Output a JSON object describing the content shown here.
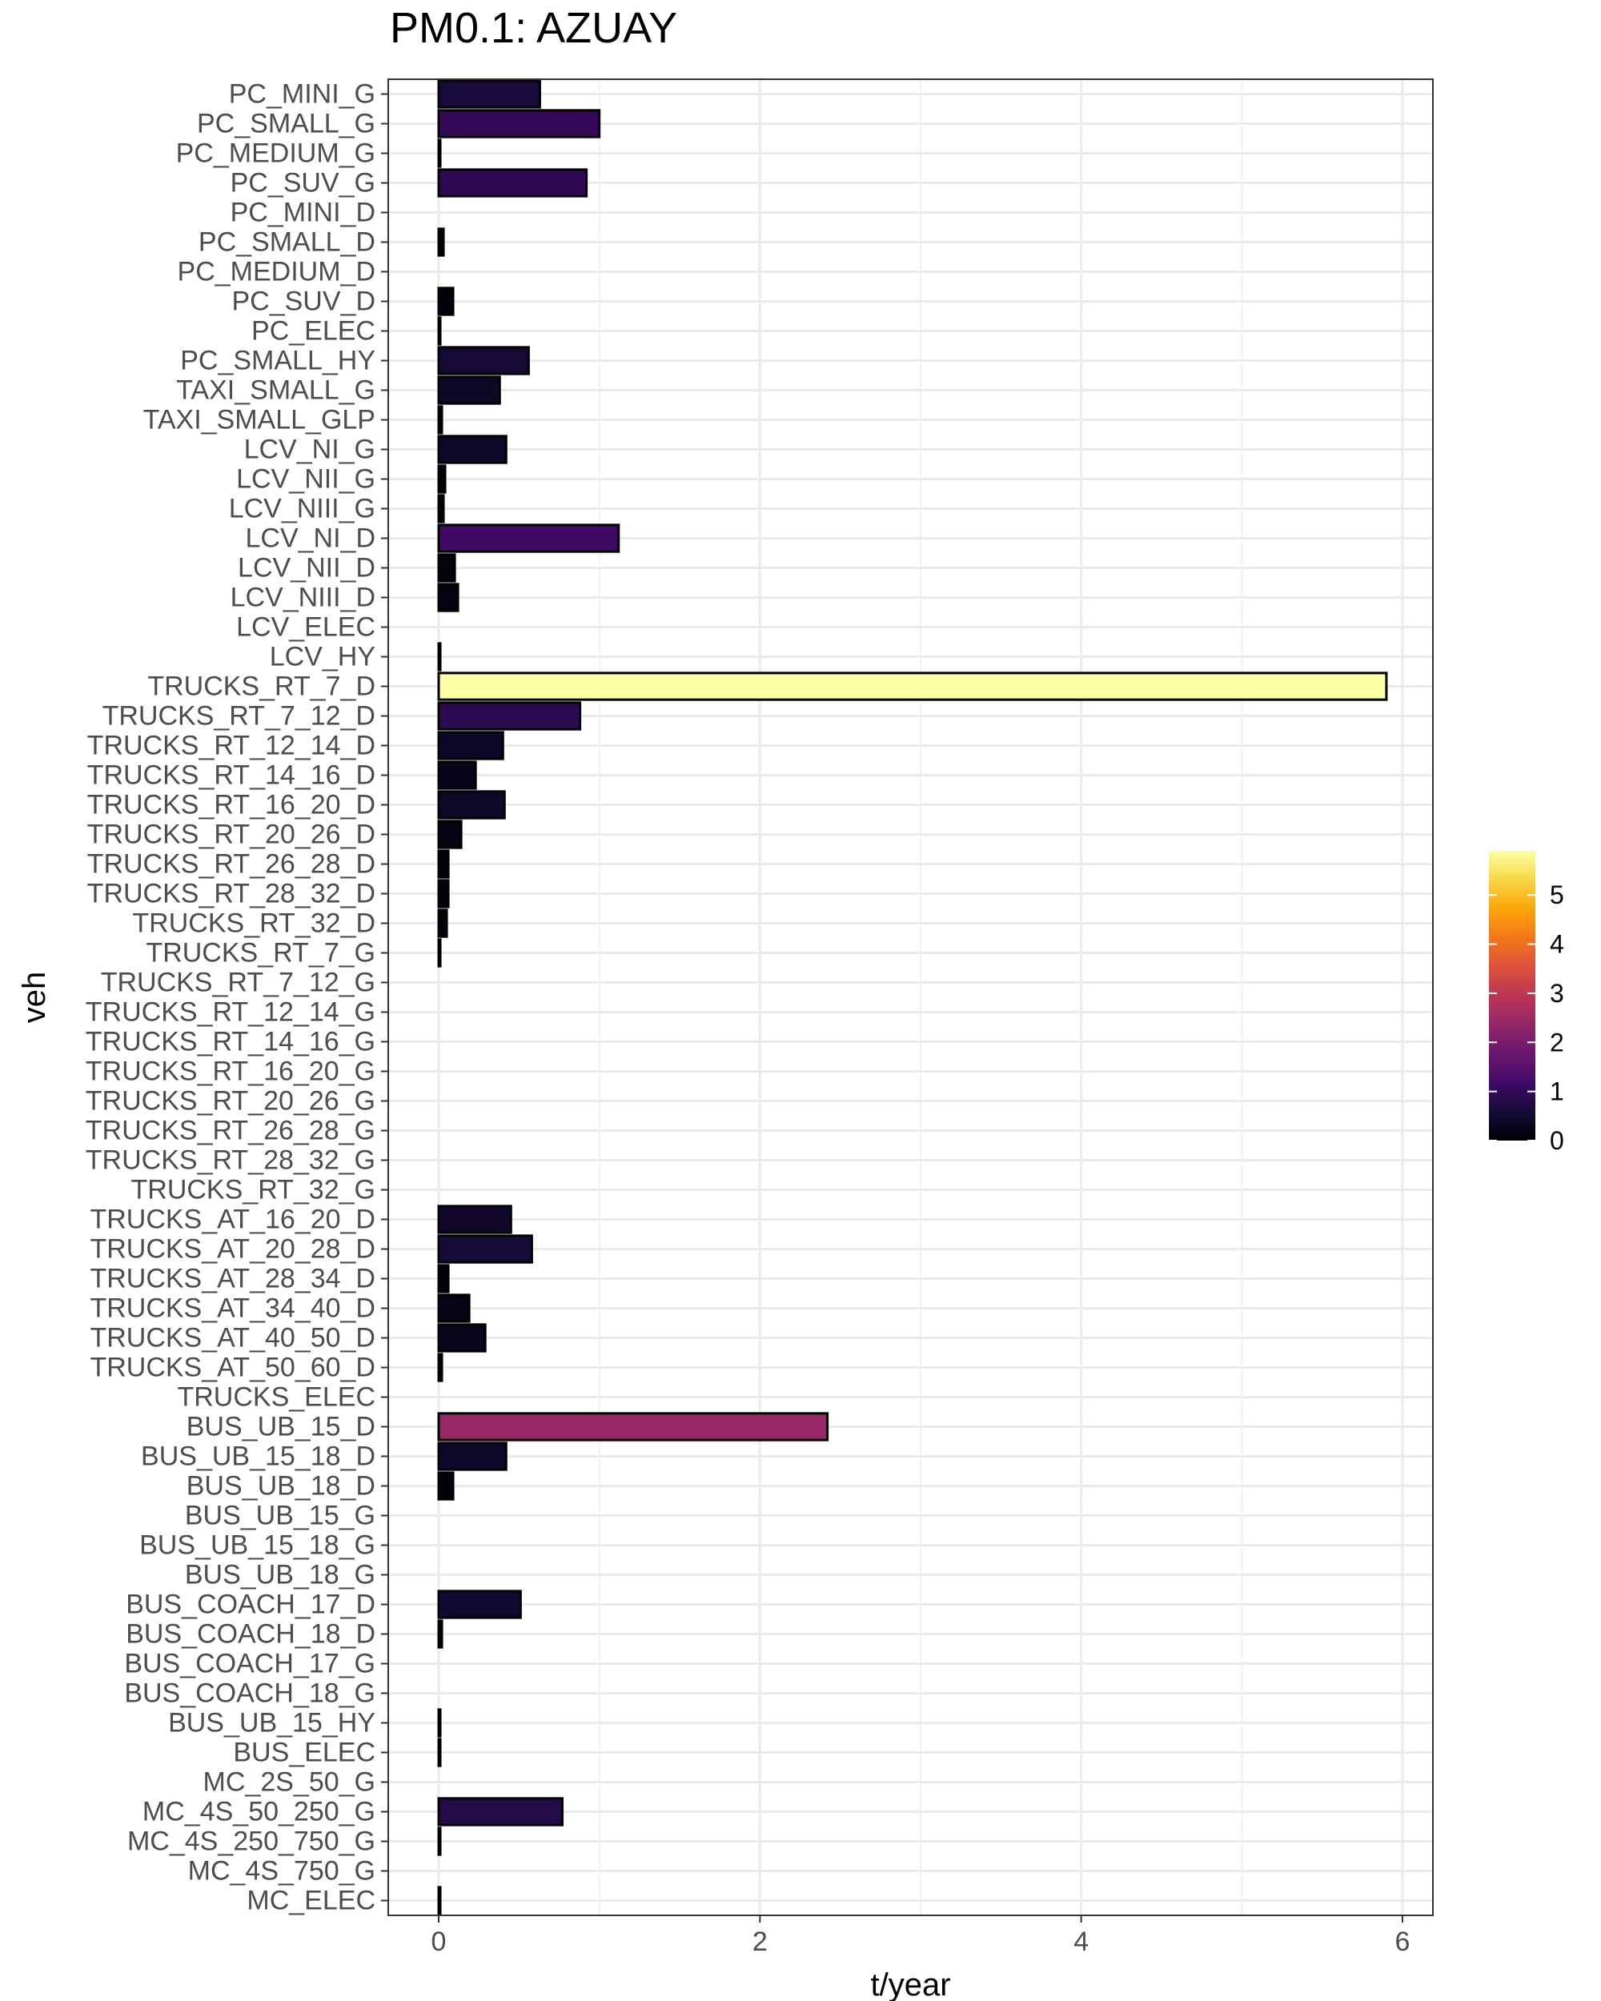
{
  "chart_data": {
    "type": "bar",
    "orientation": "horizontal",
    "title": "PM0.1: AZUAY",
    "xlabel": "t/year",
    "ylabel": "veh",
    "xlim": [
      -0.3,
      6.2
    ],
    "xticks": [
      0,
      2,
      4,
      6
    ],
    "grid": true,
    "colorscale": "inferno",
    "legend": {
      "position": "right",
      "min": 0,
      "max": 5.9,
      "ticks": [
        0,
        1,
        2,
        3,
        4,
        5
      ]
    },
    "categories": [
      "PC_MINI_G",
      "PC_SMALL_G",
      "PC_MEDIUM_G",
      "PC_SUV_G",
      "PC_MINI_D",
      "PC_SMALL_D",
      "PC_MEDIUM_D",
      "PC_SUV_D",
      "PC_ELEC",
      "PC_SMALL_HY",
      "TAXI_SMALL_G",
      "TAXI_SMALL_GLP",
      "LCV_NI_G",
      "LCV_NII_G",
      "LCV_NIII_G",
      "LCV_NI_D",
      "LCV_NII_D",
      "LCV_NIII_D",
      "LCV_ELEC",
      "LCV_HY",
      "TRUCKS_RT_7_D",
      "TRUCKS_RT_7_12_D",
      "TRUCKS_RT_12_14_D",
      "TRUCKS_RT_14_16_D",
      "TRUCKS_RT_16_20_D",
      "TRUCKS_RT_20_26_D",
      "TRUCKS_RT_26_28_D",
      "TRUCKS_RT_28_32_D",
      "TRUCKS_RT_32_D",
      "TRUCKS_RT_7_G",
      "TRUCKS_RT_7_12_G",
      "TRUCKS_RT_12_14_G",
      "TRUCKS_RT_14_16_G",
      "TRUCKS_RT_16_20_G",
      "TRUCKS_RT_20_26_G",
      "TRUCKS_RT_26_28_G",
      "TRUCKS_RT_28_32_G",
      "TRUCKS_RT_32_G",
      "TRUCKS_AT_16_20_D",
      "TRUCKS_AT_20_28_D",
      "TRUCKS_AT_28_34_D",
      "TRUCKS_AT_34_40_D",
      "TRUCKS_AT_40_50_D",
      "TRUCKS_AT_50_60_D",
      "TRUCKS_ELEC",
      "BUS_UB_15_D",
      "BUS_UB_15_18_D",
      "BUS_UB_18_D",
      "BUS_UB_15_G",
      "BUS_UB_15_18_G",
      "BUS_UB_18_G",
      "BUS_COACH_17_D",
      "BUS_COACH_18_D",
      "BUS_COACH_17_G",
      "BUS_COACH_18_G",
      "BUS_UB_15_HY",
      "BUS_ELEC",
      "MC_2S_50_G",
      "MC_4S_50_250_G",
      "MC_4S_250_750_G",
      "MC_4S_750_G",
      "MC_ELEC"
    ],
    "values": [
      0.63,
      1.0,
      0.01,
      0.92,
      0.0,
      0.03,
      0.0,
      0.09,
      0.01,
      0.56,
      0.38,
      0.02,
      0.42,
      0.04,
      0.03,
      1.12,
      0.1,
      0.12,
      0.0,
      0.01,
      5.9,
      0.88,
      0.4,
      0.23,
      0.41,
      0.14,
      0.06,
      0.06,
      0.05,
      0.01,
      0.0,
      0.0,
      0.0,
      0.0,
      0.0,
      0.0,
      0.0,
      0.0,
      0.45,
      0.58,
      0.06,
      0.19,
      0.29,
      0.02,
      0.0,
      2.42,
      0.42,
      0.09,
      0.0,
      0.0,
      0.0,
      0.51,
      0.02,
      0.0,
      0.0,
      0.01,
      0.01,
      0.0,
      0.77,
      0.01,
      0.0,
      0.01
    ]
  }
}
